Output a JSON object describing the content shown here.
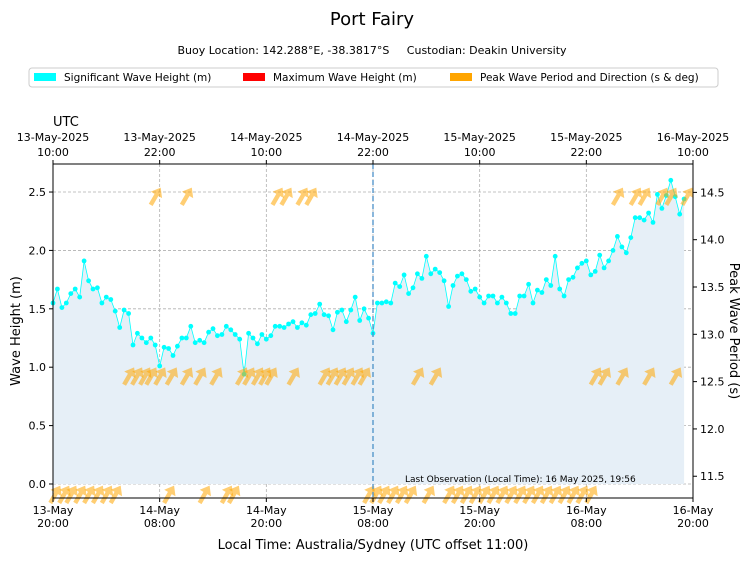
{
  "chart_data": {
    "type": "line",
    "title": "Port Fairy",
    "subtitle": "Buoy Location: 142.288°E, -38.3817°S     Custodian: Deakin University",
    "legend": {
      "placement": "top",
      "entries": [
        {
          "label": "Significant Wave Height (m)",
          "color": "#00ffff"
        },
        {
          "label": "Maximum Wave Height (m)",
          "color": "#ff0000"
        },
        {
          "label": "Peak Wave Period and Direction (s & deg)",
          "color": "#ffa500"
        }
      ]
    },
    "xlabel": "Local Time: Australia/Sydney (UTC offset 11:00)",
    "ylabel": "Wave Height (m)",
    "ylabel_right": "Peak Wave Period (s)",
    "top_axis_title": "UTC",
    "x_range_hours": [
      0,
      72
    ],
    "ylim": [
      -0.12,
      2.74
    ],
    "ylim_right": [
      11.27,
      14.8
    ],
    "yticks": [
      0.0,
      0.5,
      1.0,
      1.5,
      2.0,
      2.5
    ],
    "ytick_labels": [
      "0.0",
      "0.5",
      "1.0",
      "1.5",
      "2.0",
      "2.5"
    ],
    "yticks_right": [
      11.5,
      12.0,
      12.5,
      13.0,
      13.5,
      14.0,
      14.5
    ],
    "ytick_labels_right": [
      "11.5",
      "12.0",
      "12.5",
      "13.0",
      "13.5",
      "14.0",
      "14.5"
    ],
    "xticks_hours": [
      0,
      12,
      24,
      36,
      48,
      60,
      72
    ],
    "xtick_labels_bottom": [
      [
        "13-May",
        "20:00"
      ],
      [
        "14-May",
        "08:00"
      ],
      [
        "14-May",
        "20:00"
      ],
      [
        "15-May",
        "08:00"
      ],
      [
        "15-May",
        "20:00"
      ],
      [
        "16-May",
        "08:00"
      ],
      [
        "16-May",
        "20:00"
      ]
    ],
    "xtick_labels_top": [
      [
        "13-May-2025",
        "10:00"
      ],
      [
        "13-May-2025",
        "22:00"
      ],
      [
        "14-May-2025",
        "10:00"
      ],
      [
        "14-May-2025",
        "22:00"
      ],
      [
        "15-May-2025",
        "10:00"
      ],
      [
        "15-May-2025",
        "22:00"
      ],
      [
        "16-May-2025",
        "10:00"
      ]
    ],
    "grid": true,
    "vline_hours": 36,
    "annotation": "Last Observation (Local Time): 16 May 2025, 19:56",
    "series": [
      {
        "name": "Significant Wave Height (m)",
        "color": "#00ffff",
        "x_start_hours": 0,
        "x_step_hours": 0.5,
        "values": [
          1.55,
          1.67,
          1.51,
          1.55,
          1.63,
          1.67,
          1.6,
          1.91,
          1.74,
          1.67,
          1.68,
          1.55,
          1.6,
          1.58,
          1.48,
          1.34,
          1.49,
          1.46,
          1.19,
          1.29,
          1.25,
          1.21,
          1.25,
          1.19,
          1.01,
          1.17,
          1.16,
          1.1,
          1.18,
          1.25,
          1.25,
          1.35,
          1.21,
          1.23,
          1.21,
          1.3,
          1.33,
          1.27,
          1.28,
          1.35,
          1.32,
          1.28,
          1.24,
          0.94,
          1.29,
          1.25,
          1.2,
          1.28,
          1.24,
          1.27,
          1.35,
          1.35,
          1.34,
          1.37,
          1.39,
          1.34,
          1.38,
          1.36,
          1.45,
          1.46,
          1.54,
          1.45,
          1.44,
          1.32,
          1.47,
          1.49,
          1.39,
          1.49,
          1.6,
          1.4,
          1.5,
          1.42,
          1.29,
          1.55,
          1.55,
          1.56,
          1.55,
          1.72,
          1.69,
          1.79,
          1.63,
          1.68,
          1.8,
          1.76,
          1.95,
          1.8,
          1.84,
          1.81,
          1.74,
          1.52,
          1.7,
          1.78,
          1.8,
          1.75,
          1.65,
          1.67,
          1.6,
          1.55,
          1.61,
          1.61,
          1.55,
          1.6,
          1.55,
          1.46,
          1.46,
          1.61,
          1.61,
          1.71,
          1.55,
          1.66,
          1.64,
          1.75,
          1.7,
          1.95,
          1.67,
          1.61,
          1.75,
          1.77,
          1.85,
          1.89,
          1.91,
          1.79,
          1.82,
          1.96,
          1.85,
          1.91,
          2.0,
          2.12,
          2.03,
          1.98,
          2.11,
          2.28,
          2.28,
          2.26,
          2.32,
          2.24,
          2.48,
          2.36,
          2.47,
          2.6,
          2.46,
          2.31,
          2.44
        ]
      },
      {
        "name": "Peak Wave Period and Direction (s & deg)",
        "color": "#ffa500",
        "direction_deg": 210,
        "points": [
          [
            0.2,
            11.3
          ],
          [
            1.2,
            11.3
          ],
          [
            2.0,
            11.3
          ],
          [
            3.0,
            11.3
          ],
          [
            4.0,
            11.3
          ],
          [
            5.0,
            11.3
          ],
          [
            6.0,
            11.3
          ],
          [
            7.0,
            11.3
          ],
          [
            8.5,
            12.55
          ],
          [
            9.4,
            12.55
          ],
          [
            10.3,
            12.55
          ],
          [
            11.0,
            12.55
          ],
          [
            12.0,
            12.55
          ],
          [
            13.3,
            12.55
          ],
          [
            15.0,
            12.55
          ],
          [
            16.5,
            12.55
          ],
          [
            18.3,
            12.55
          ],
          [
            21.2,
            12.55
          ],
          [
            22.0,
            12.55
          ],
          [
            23.0,
            12.55
          ],
          [
            23.8,
            12.55
          ],
          [
            24.5,
            12.55
          ],
          [
            27.0,
            12.55
          ],
          [
            30.5,
            12.55
          ],
          [
            31.4,
            12.55
          ],
          [
            32.3,
            12.55
          ],
          [
            33.2,
            12.55
          ],
          [
            34.2,
            12.55
          ],
          [
            35.0,
            12.55
          ],
          [
            11.5,
            14.45
          ],
          [
            15.0,
            14.45
          ],
          [
            25.2,
            14.45
          ],
          [
            26.2,
            14.45
          ],
          [
            28.0,
            14.45
          ],
          [
            29.0,
            14.45
          ],
          [
            13.0,
            11.3
          ],
          [
            17.0,
            11.3
          ],
          [
            19.5,
            11.3
          ],
          [
            20.3,
            11.3
          ],
          [
            35.5,
            11.3
          ],
          [
            36.3,
            11.3
          ],
          [
            37.2,
            11.3
          ],
          [
            38.2,
            11.3
          ],
          [
            39.2,
            11.3
          ],
          [
            40.2,
            11.3
          ],
          [
            42.2,
            11.3
          ],
          [
            44.5,
            11.3
          ],
          [
            45.5,
            11.3
          ],
          [
            46.5,
            11.3
          ],
          [
            47.5,
            11.3
          ],
          [
            48.5,
            11.3
          ],
          [
            49.5,
            11.3
          ],
          [
            50.5,
            11.3
          ],
          [
            51.5,
            11.3
          ],
          [
            52.5,
            11.3
          ],
          [
            53.5,
            11.3
          ],
          [
            54.5,
            11.3
          ],
          [
            55.5,
            11.3
          ],
          [
            56.5,
            11.3
          ],
          [
            57.5,
            11.3
          ],
          [
            58.5,
            11.3
          ],
          [
            59.5,
            11.3
          ],
          [
            60.5,
            11.3
          ],
          [
            41.0,
            12.55
          ],
          [
            43.0,
            12.55
          ],
          [
            61.0,
            12.55
          ],
          [
            62.0,
            12.55
          ],
          [
            64.0,
            12.55
          ],
          [
            67.0,
            12.55
          ],
          [
            70.0,
            12.55
          ],
          [
            63.5,
            14.45
          ],
          [
            65.5,
            14.45
          ],
          [
            66.5,
            14.45
          ],
          [
            68.5,
            14.45
          ],
          [
            69.5,
            14.45
          ],
          [
            71.3,
            14.45
          ]
        ]
      }
    ]
  }
}
